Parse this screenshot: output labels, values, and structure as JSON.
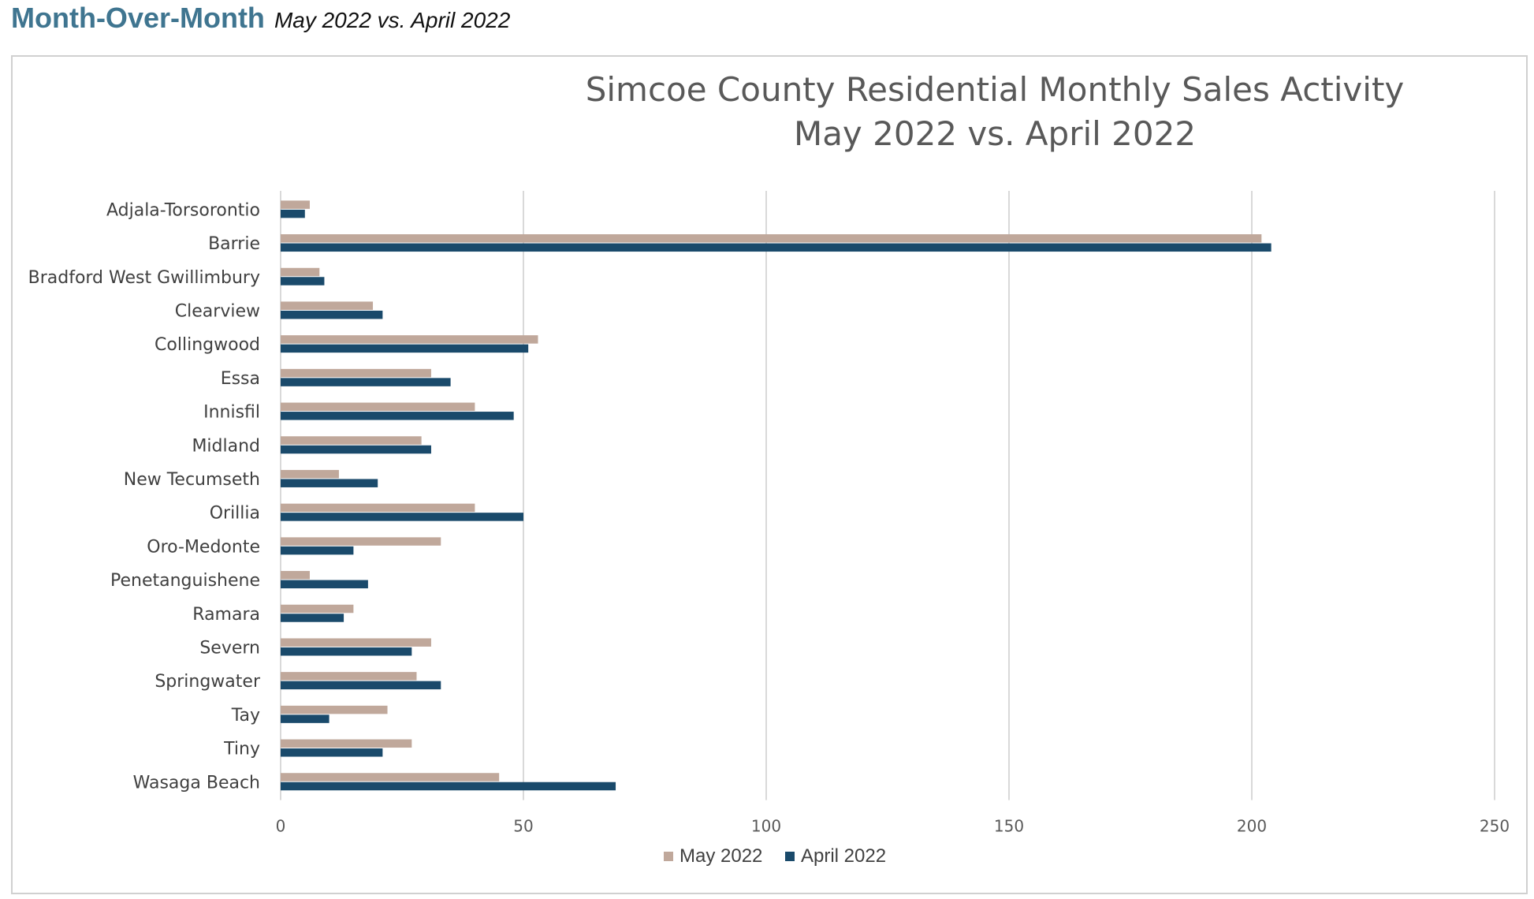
{
  "header": {
    "title": "Month-Over-Month",
    "subtitle": "May 2022 vs. April 2022"
  },
  "colors": {
    "header_title": "#3f7590",
    "may": "#c0a89b",
    "april": "#1a4a6b",
    "grid": "#d9d9d9"
  },
  "chart_data": {
    "type": "bar",
    "orientation": "horizontal",
    "title": "Simcoe County Residential Monthly Sales Activity",
    "subtitle": "May 2022 vs. April 2022",
    "categories": [
      "Adjala-Torsorontio",
      "Barrie",
      "Bradford West Gwillimbury",
      "Clearview",
      "Collingwood",
      "Essa",
      "Innisfil",
      "Midland",
      "New Tecumseth",
      "Orillia",
      "Oro-Medonte",
      "Penetanguishene",
      "Ramara",
      "Severn",
      "Springwater",
      "Tay",
      "Tiny",
      "Wasaga Beach"
    ],
    "series": [
      {
        "name": "May 2022",
        "color": "#c0a89b",
        "values": [
          6,
          202,
          8,
          19,
          53,
          31,
          40,
          29,
          12,
          40,
          33,
          6,
          15,
          31,
          28,
          22,
          27,
          45
        ]
      },
      {
        "name": "April 2022",
        "color": "#1a4a6b",
        "values": [
          5,
          204,
          9,
          21,
          51,
          35,
          48,
          31,
          20,
          50,
          15,
          18,
          13,
          27,
          33,
          10,
          21,
          69
        ]
      }
    ],
    "xlim": [
      0,
      250
    ],
    "xticks": [
      0,
      50,
      100,
      150,
      200,
      250
    ],
    "xlabel": "",
    "ylabel": "",
    "grid": "vertical",
    "legend": "bottom"
  }
}
